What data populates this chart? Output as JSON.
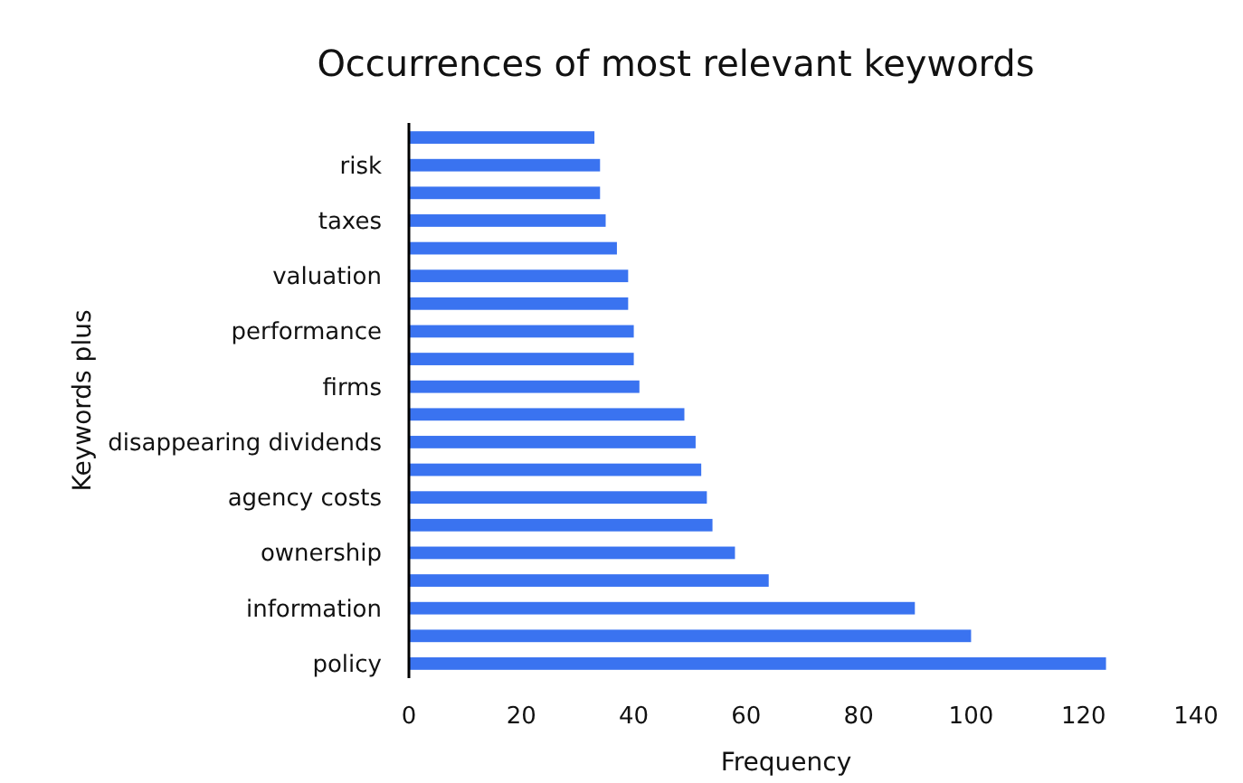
{
  "chart_data": {
    "type": "bar",
    "orientation": "horizontal",
    "title": "Occurrences of most relevant keywords",
    "xlabel": "Frequency",
    "ylabel": "Keywords plus",
    "categories": [
      null,
      "risk",
      null,
      "taxes",
      null,
      "valuation",
      null,
      "performance",
      null,
      "firms",
      null,
      "disappearing dividends",
      null,
      "agency costs",
      null,
      "ownership",
      null,
      "information",
      null,
      "policy"
    ],
    "values": [
      33,
      34,
      34,
      35,
      37,
      39,
      39,
      40,
      40,
      41,
      49,
      51,
      52,
      53,
      54,
      58,
      64,
      90,
      100,
      124
    ],
    "color": "#3a73f0",
    "xlim": [
      0,
      140
    ],
    "xticks": [
      0,
      20,
      40,
      60,
      80,
      100,
      120,
      140
    ],
    "grid": false
  }
}
